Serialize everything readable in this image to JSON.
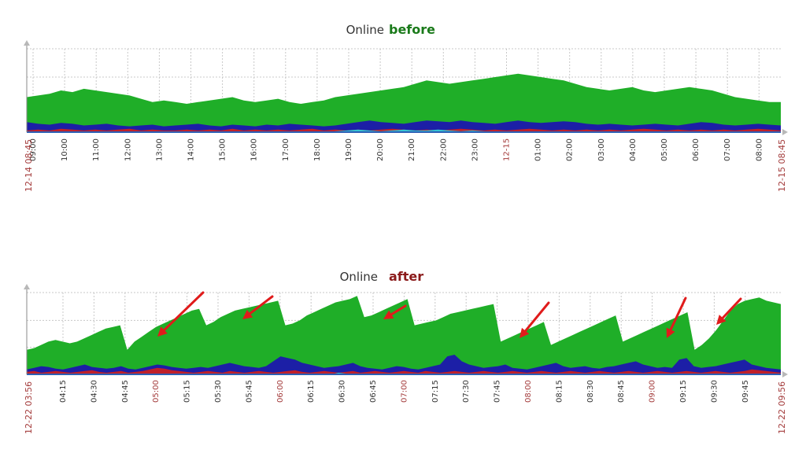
{
  "colors": {
    "green": "#1fae28",
    "blue": "#1c1fa6",
    "red": "#c0202a",
    "cyan": "#35c3d3",
    "before_tag": "#1a7a1a",
    "after_tag": "#8b1a1a",
    "arrow": "#e01b1b"
  },
  "chart_data": [
    {
      "type": "area",
      "title": "Online",
      "title_tag": "before",
      "series": [
        {
          "name": "green",
          "values": [
            42,
            44,
            46,
            50,
            48,
            52,
            50,
            48,
            46,
            44,
            40,
            36,
            38,
            36,
            34,
            36,
            38,
            40,
            42,
            38,
            36,
            38,
            40,
            36,
            34,
            36,
            38,
            42,
            44,
            46,
            48,
            50,
            52,
            54,
            58,
            62,
            60,
            58,
            60,
            62,
            64,
            66,
            68,
            70,
            68,
            66,
            64,
            62,
            58,
            54,
            52,
            50,
            52,
            54,
            50,
            48,
            50,
            52,
            54,
            52,
            50,
            46,
            42,
            40,
            38,
            36,
            36
          ]
        },
        {
          "name": "blue",
          "values": [
            12,
            10,
            9,
            11,
            10,
            8,
            9,
            10,
            8,
            7,
            8,
            9,
            7,
            8,
            9,
            10,
            8,
            7,
            9,
            8,
            7,
            9,
            8,
            10,
            9,
            8,
            7,
            8,
            10,
            12,
            14,
            12,
            11,
            10,
            12,
            14,
            13,
            12,
            14,
            12,
            11,
            10,
            12,
            14,
            12,
            11,
            12,
            13,
            12,
            10,
            9,
            10,
            9,
            8,
            9,
            10,
            9,
            8,
            10,
            12,
            11,
            9,
            8,
            9,
            10,
            9,
            8
          ]
        },
        {
          "name": "red",
          "values": [
            2,
            3,
            2,
            4,
            3,
            2,
            3,
            2,
            3,
            4,
            2,
            3,
            2,
            2,
            3,
            2,
            3,
            2,
            4,
            2,
            3,
            2,
            3,
            2,
            3,
            4,
            2,
            3,
            2,
            3,
            2,
            3,
            4,
            3,
            2,
            3,
            2,
            3,
            4,
            3,
            2,
            3,
            2,
            3,
            4,
            3,
            2,
            3,
            2,
            3,
            2,
            3,
            2,
            3,
            4,
            3,
            2,
            3,
            2,
            3,
            2,
            3,
            2,
            3,
            4,
            3,
            2
          ]
        },
        {
          "name": "cyan",
          "values": [
            0,
            0,
            0,
            0,
            0,
            0,
            0,
            0,
            0,
            0,
            0,
            0,
            0,
            0,
            0,
            0,
            0,
            0,
            0,
            0,
            0,
            0,
            0,
            0,
            0,
            0,
            0,
            1,
            2,
            3,
            2,
            1,
            2,
            3,
            2,
            2,
            3,
            2,
            1,
            2,
            1,
            0,
            0,
            0,
            0,
            0,
            0,
            0,
            0,
            0,
            0,
            0,
            0,
            0,
            0,
            0,
            0,
            0,
            0,
            0,
            0,
            0,
            0,
            0,
            0,
            0,
            0
          ]
        }
      ],
      "ylim": [
        0,
        100
      ],
      "x_labels": [
        "09:00",
        "10:00",
        "11:00",
        "12:00",
        "13:00",
        "14:00",
        "15:00",
        "16:00",
        "17:00",
        "18:00",
        "19:00",
        "20:00",
        "21:00",
        "22:00",
        "23:00",
        "12-15",
        "01:00",
        "02:00",
        "03:00",
        "04:00",
        "05:00",
        "06:00",
        "07:00",
        "08:00"
      ],
      "major_labels": [
        "12-15"
      ],
      "start_label": "12-14 08:45",
      "end_label": "12-15 08:45"
    },
    {
      "type": "area",
      "title": "Online",
      "title_tag": "after",
      "series": [
        {
          "name": "green",
          "values": [
            30,
            32,
            36,
            40,
            42,
            40,
            38,
            40,
            44,
            48,
            52,
            56,
            58,
            60,
            30,
            40,
            46,
            52,
            58,
            62,
            66,
            70,
            74,
            78,
            80,
            60,
            64,
            70,
            74,
            78,
            80,
            82,
            84,
            86,
            88,
            90,
            60,
            62,
            66,
            72,
            76,
            80,
            84,
            88,
            90,
            92,
            96,
            70,
            72,
            76,
            80,
            84,
            88,
            92,
            60,
            62,
            64,
            66,
            70,
            74,
            76,
            78,
            80,
            82,
            84,
            86,
            40,
            44,
            48,
            52,
            56,
            60,
            64,
            36,
            40,
            44,
            48,
            52,
            56,
            60,
            64,
            68,
            72,
            40,
            44,
            48,
            52,
            56,
            60,
            64,
            68,
            72,
            76,
            30,
            36,
            44,
            54,
            66,
            78,
            86,
            90,
            92,
            94,
            90,
            88,
            86
          ]
        },
        {
          "name": "blue",
          "values": [
            6,
            8,
            10,
            9,
            7,
            6,
            8,
            10,
            12,
            9,
            8,
            7,
            8,
            10,
            7,
            6,
            8,
            10,
            12,
            11,
            9,
            8,
            7,
            8,
            9,
            8,
            10,
            12,
            14,
            12,
            10,
            9,
            8,
            10,
            16,
            22,
            20,
            18,
            14,
            12,
            10,
            8,
            9,
            10,
            12,
            14,
            10,
            8,
            7,
            6,
            8,
            10,
            9,
            7,
            6,
            8,
            10,
            12,
            22,
            24,
            16,
            12,
            10,
            8,
            9,
            10,
            12,
            8,
            7,
            6,
            8,
            10,
            12,
            14,
            10,
            8,
            9,
            10,
            8,
            7,
            9,
            10,
            12,
            14,
            16,
            12,
            10,
            8,
            9,
            8,
            18,
            20,
            10,
            8,
            9,
            10,
            12,
            14,
            16,
            18,
            12,
            10,
            8,
            7,
            6
          ]
        },
        {
          "name": "red",
          "values": [
            3,
            4,
            2,
            3,
            4,
            3,
            2,
            3,
            4,
            5,
            3,
            2,
            3,
            4,
            2,
            3,
            4,
            6,
            8,
            7,
            5,
            4,
            3,
            2,
            3,
            4,
            3,
            2,
            4,
            3,
            2,
            3,
            4,
            3,
            2,
            3,
            4,
            5,
            3,
            2,
            3,
            4,
            3,
            2,
            3,
            4,
            2,
            3,
            4,
            3,
            2,
            3,
            4,
            3,
            2,
            4,
            3,
            2,
            3,
            4,
            3,
            2,
            3,
            4,
            3,
            2,
            3,
            4,
            3,
            2,
            3,
            4,
            3,
            2,
            3,
            4,
            3,
            2,
            3,
            4,
            3,
            2,
            3,
            4,
            3,
            2,
            3,
            4,
            3,
            2,
            3,
            4,
            3,
            2,
            3,
            4,
            3,
            2,
            3,
            4,
            6,
            5,
            4,
            3,
            2
          ]
        },
        {
          "name": "cyan",
          "values": [
            0,
            0,
            0,
            0,
            0,
            0,
            0,
            0,
            0,
            0,
            0,
            0,
            0,
            0,
            0,
            0,
            0,
            0,
            0,
            0,
            0,
            0,
            0,
            0,
            0,
            0,
            0,
            0,
            0,
            0,
            0,
            0,
            0,
            0,
            0,
            0,
            0,
            0,
            0,
            0,
            0,
            0,
            0,
            2,
            1,
            0,
            0,
            0,
            0,
            0,
            0,
            0,
            0,
            0,
            0,
            0,
            0,
            0,
            0,
            0,
            0,
            0,
            0,
            0,
            0,
            0,
            0,
            0,
            0,
            0,
            0,
            0,
            0,
            0,
            0,
            0,
            0,
            0,
            0,
            0,
            0,
            0,
            0,
            0,
            0,
            0,
            0,
            0,
            0,
            0,
            0,
            0,
            0,
            0,
            0,
            0,
            0,
            0,
            0,
            0,
            0,
            0,
            0,
            0,
            0
          ]
        }
      ],
      "ylim": [
        0,
        100
      ],
      "x_labels": [
        "04:15",
        "04:30",
        "04:45",
        "05:00",
        "05:15",
        "05:30",
        "05:45",
        "06:00",
        "06:15",
        "06:30",
        "06:45",
        "07:00",
        "07:15",
        "07:30",
        "07:45",
        "08:00",
        "08:15",
        "08:30",
        "08:45",
        "09:00",
        "09:15",
        "09:30",
        "09:45"
      ],
      "major_labels": [
        "05:00",
        "06:00",
        "07:00",
        "08:00",
        "09:00"
      ],
      "start_label": "12-22 03:56",
      "end_label": "12-22 09:56",
      "annotations": [
        "drop-arrow-1",
        "drop-arrow-2",
        "drop-arrow-3",
        "drop-arrow-4",
        "drop-arrow-5",
        "drop-arrow-6"
      ]
    }
  ]
}
